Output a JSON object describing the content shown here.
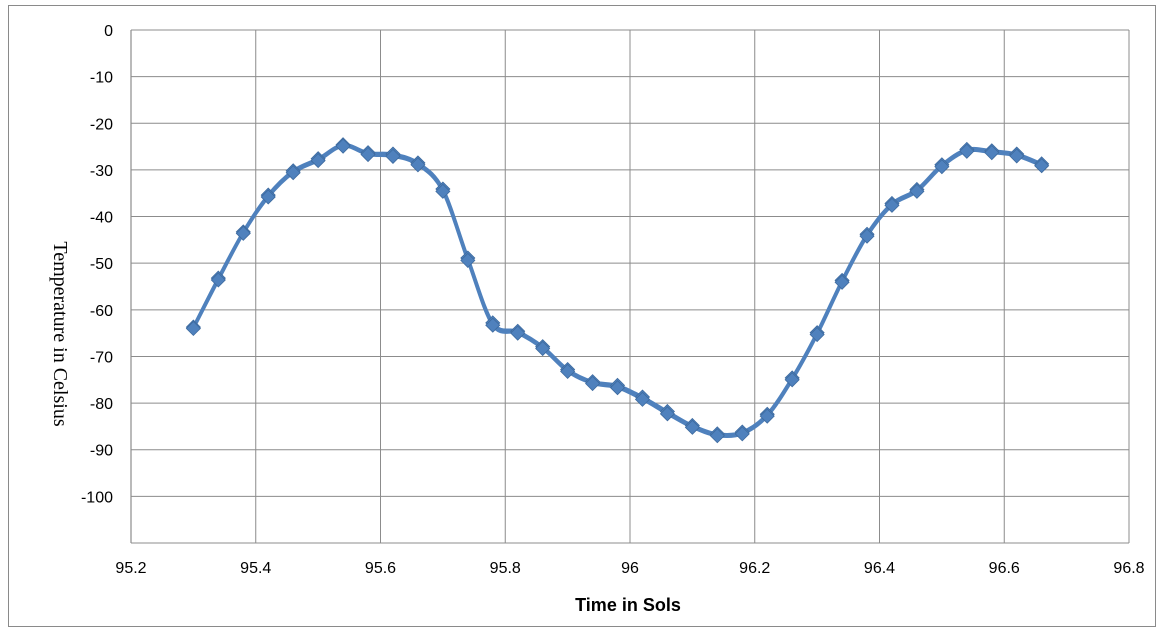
{
  "chart_data": {
    "type": "line",
    "title": "",
    "xlabel": "Time in Sols",
    "ylabel": "Temperature in Celsius",
    "xlim": [
      95.2,
      96.8
    ],
    "ylim": [
      -110,
      0
    ],
    "x_ticks": [
      95.2,
      95.4,
      95.6,
      95.8,
      96,
      96.2,
      96.4,
      96.6,
      96.8
    ],
    "x_tick_labels": [
      "95.2",
      "95.4",
      "95.6",
      "95.8",
      "96",
      "96.2",
      "96.4",
      "96.6",
      "96.8"
    ],
    "y_ticks": [
      0,
      -10,
      -20,
      -30,
      -40,
      -50,
      -60,
      -70,
      -80,
      -90,
      -100
    ],
    "y_tick_labels": [
      "0",
      "-10",
      "-20",
      "-30",
      "-40",
      "-50",
      "-60",
      "-70",
      "-80",
      "-90",
      "-100"
    ],
    "grid": true,
    "legend": "none",
    "marker": "diamond",
    "line_color": "#4f81bd",
    "x": [
      95.3,
      95.34,
      95.38,
      95.42,
      95.46,
      95.5,
      95.54,
      95.58,
      95.62,
      95.66,
      95.7,
      95.74,
      95.78,
      95.82,
      95.86,
      95.9,
      95.94,
      95.98,
      96.02,
      96.06,
      96.1,
      96.14,
      96.18,
      96.22,
      96.26,
      96.3,
      96.34,
      96.38,
      96.42,
      96.46,
      96.5,
      96.54,
      96.58,
      96.62,
      96.66
    ],
    "series": [
      {
        "values": [
          -63.7,
          -53.2,
          -43.3,
          -35.4,
          -30.2,
          -27.6,
          -24.6,
          -26.3,
          -26.6,
          -28.5,
          -34.1,
          -48.9,
          -62.8,
          -64.6,
          -67.9,
          -72.8,
          -75.4,
          -76.2,
          -78.7,
          -81.8,
          -84.8,
          -86.6,
          -86.2,
          -82.4,
          -74.6,
          -64.9,
          -53.7,
          -43.8,
          -37.2,
          -34.2,
          -28.9,
          -25.6,
          -25.9,
          -26.6,
          -28.7
        ]
      },
      {
        "values": [
          -64.0,
          -53.6,
          -43.6,
          -35.8,
          -30.6,
          -28.0,
          -24.9,
          -26.7,
          -27.1,
          -28.9,
          -34.6,
          -49.4,
          -63.3,
          -65.0,
          -68.3,
          -73.2,
          -75.8,
          -76.7,
          -79.2,
          -82.3,
          -85.2,
          -87.0,
          -86.6,
          -82.8,
          -75.0,
          -65.3,
          -54.1,
          -44.2,
          -37.6,
          -34.6,
          -29.3,
          -26.0,
          -26.3,
          -27.0,
          -29.1
        ]
      }
    ]
  }
}
